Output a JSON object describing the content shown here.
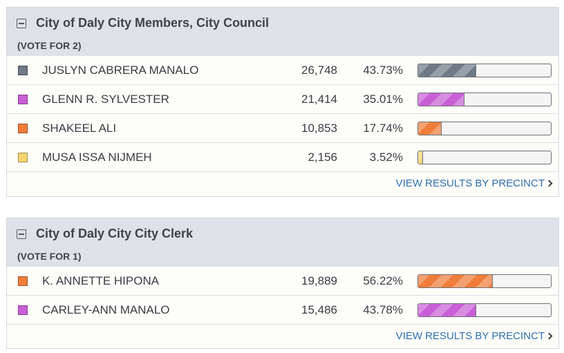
{
  "contests": [
    {
      "title": "City of Daly City Members, City Council",
      "vote_for": "(VOTE FOR 2)",
      "link_label": "VIEW RESULTS BY PRECINCT",
      "candidates": [
        {
          "name": "JUSLYN CABRERA MANALO",
          "votes": "26,748",
          "percent": "43.73%",
          "share": 43.73,
          "color": "#6f7a86"
        },
        {
          "name": "GLENN R. SYLVESTER",
          "votes": "21,414",
          "percent": "35.01%",
          "share": 35.01,
          "color": "#c95fd6"
        },
        {
          "name": "SHAKEEL ALI",
          "votes": "10,853",
          "percent": "17.74%",
          "share": 17.74,
          "color": "#f07d3a"
        },
        {
          "name": "MUSA ISSA NIJMEH",
          "votes": "2,156",
          "percent": "3.52%",
          "share": 3.52,
          "color": "#f5d66e"
        }
      ]
    },
    {
      "title": "City of Daly City City Clerk",
      "vote_for": "(VOTE FOR 1)",
      "link_label": "VIEW RESULTS BY PRECINCT",
      "candidates": [
        {
          "name": "K. ANNETTE HIPONA",
          "votes": "19,889",
          "percent": "56.22%",
          "share": 56.22,
          "color": "#f07d3a"
        },
        {
          "name": "CARLEY-ANN MANALO",
          "votes": "15,486",
          "percent": "43.78%",
          "share": 43.78,
          "color": "#c95fd6"
        }
      ]
    }
  ]
}
